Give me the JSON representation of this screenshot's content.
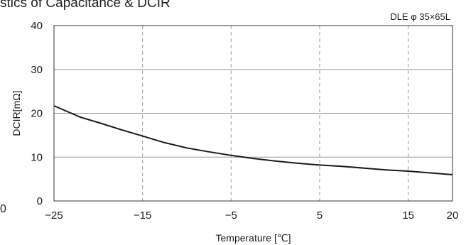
{
  "page": {
    "title_partial": "stics of Capacitance & DCIR",
    "stray_mark": "0"
  },
  "chart_data": {
    "type": "line",
    "title": "",
    "annotation": "DLE φ 35×65L",
    "xlabel": "Temperature [℃]",
    "ylabel": "DCIR[mΩ]",
    "xlim": [
      -25,
      20
    ],
    "ylim": [
      0,
      40
    ],
    "x_ticks": [
      -25,
      -15,
      -5,
      5,
      15,
      20
    ],
    "x_tick_labels": [
      "−25",
      "−15",
      "−5",
      "5",
      "15",
      "20"
    ],
    "y_ticks": [
      0,
      10,
      20,
      30,
      40
    ],
    "y_tick_labels": [
      "0",
      "10",
      "20",
      "30",
      "40"
    ],
    "grid": {
      "vertical": "dashed",
      "horizontal": "solid"
    },
    "series": [
      {
        "color": "#1a1a1a",
        "x": [
          -25,
          -22,
          -20,
          -17.5,
          -15,
          -12.5,
          -10,
          -7.5,
          -5,
          -2.5,
          0,
          2.5,
          5,
          7.5,
          10,
          12.5,
          15,
          17.5,
          20
        ],
        "y": [
          21.7,
          19.1,
          17.9,
          16.3,
          14.8,
          13.3,
          12.1,
          11.2,
          10.4,
          9.7,
          9.1,
          8.6,
          8.2,
          7.9,
          7.5,
          7.1,
          6.8,
          6.4,
          6.0
        ]
      }
    ]
  }
}
